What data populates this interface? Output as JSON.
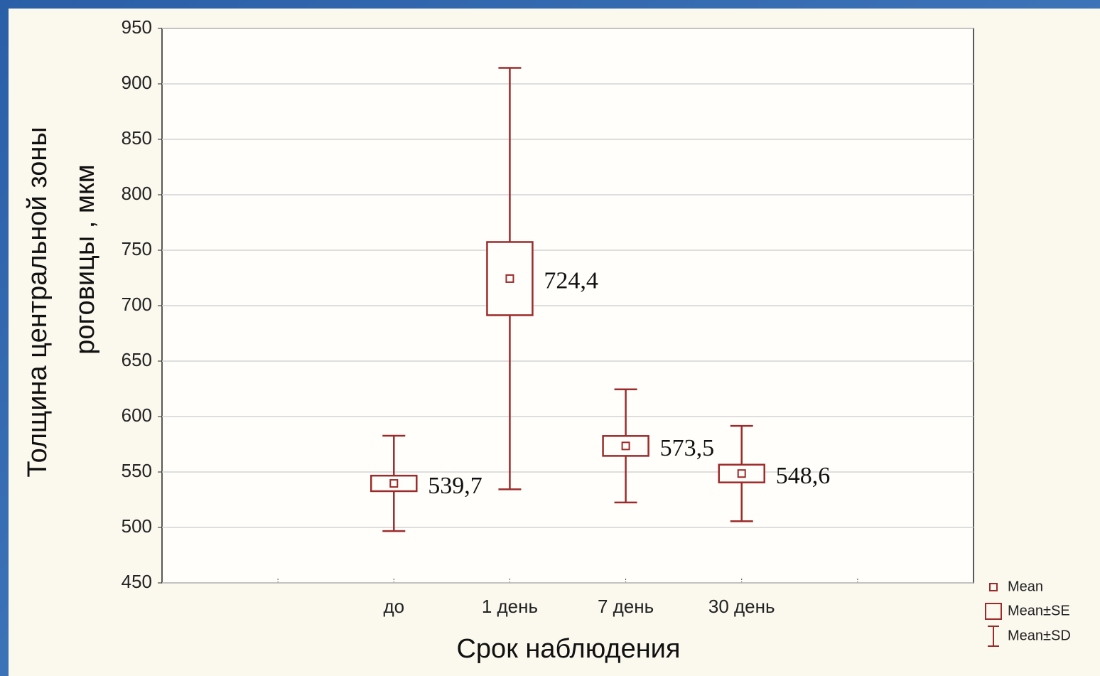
{
  "chart_data": {
    "type": "box",
    "xlabel": "Срок наблюдения",
    "ylabel": [
      "Толщина центральной зоны",
      "роговицы , мкм"
    ],
    "categories": [
      "до",
      "1 день",
      "7 день",
      "30 день"
    ],
    "series": [
      {
        "name": "Mean",
        "color": "#9b2b2b",
        "values": [
          539.7,
          724.4,
          573.5,
          548.6
        ],
        "value_labels": [
          "539,7",
          "724,4",
          "573,5",
          "548,6"
        ]
      },
      {
        "name": "Mean±SE",
        "color": "#9b2b2b",
        "values": [
          7,
          33,
          9,
          8
        ]
      },
      {
        "name": "Mean±SD",
        "color": "#9b2b2b",
        "values": [
          43,
          190,
          51,
          43
        ]
      }
    ],
    "ylim": [
      450,
      950
    ],
    "yticks": [
      450,
      500,
      550,
      600,
      650,
      700,
      750,
      800,
      850,
      900,
      950
    ],
    "grid": true
  }
}
